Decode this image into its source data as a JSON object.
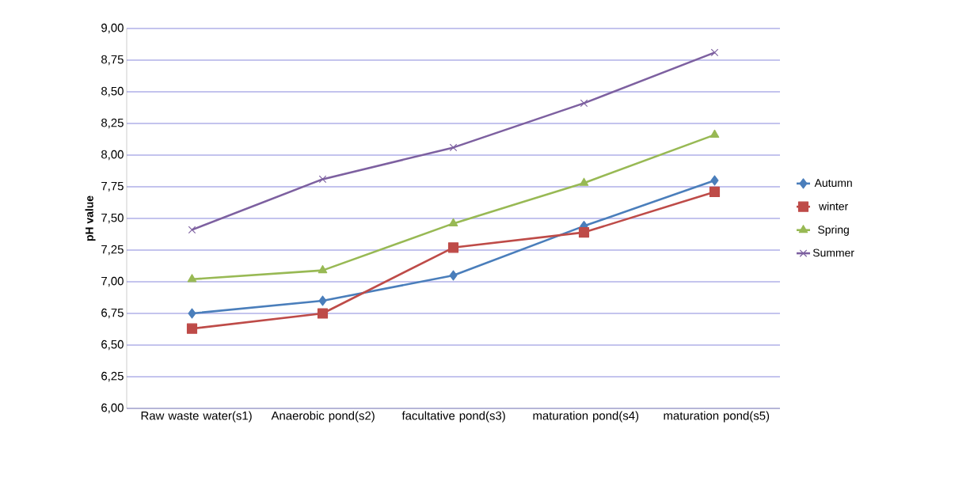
{
  "chart_data": {
    "type": "line",
    "ylabel": "pH value",
    "categories": [
      "Raw waste water(s1)",
      "Anaerobic pond(s2)",
      "facultative pond(s3)",
      "maturation pond(s4)",
      "maturation pond(s5)"
    ],
    "series": [
      {
        "name": "Autumn",
        "color": "#4a7ebb",
        "marker": "diamond",
        "values": [
          6.75,
          6.85,
          7.05,
          7.44,
          7.8
        ]
      },
      {
        "name": "winter",
        "color": "#be4b48",
        "marker": "square",
        "values": [
          6.63,
          6.75,
          7.27,
          7.39,
          7.71
        ]
      },
      {
        "name": "Spring",
        "color": "#98b954",
        "marker": "triangle",
        "values": [
          7.02,
          7.09,
          7.46,
          7.78,
          8.16
        ]
      },
      {
        "name": "Summer",
        "color": "#7d60a0",
        "marker": "cross",
        "values": [
          7.41,
          7.81,
          8.06,
          8.41,
          8.81
        ]
      }
    ],
    "ylim": [
      6,
      9
    ],
    "yticks": [
      {
        "value": 6,
        "label": "6,00"
      },
      {
        "value": 6.25,
        "label": "6,25"
      },
      {
        "value": 6.5,
        "label": "6,50"
      },
      {
        "value": 6.75,
        "label": "6,75"
      },
      {
        "value": 7,
        "label": "7,00"
      },
      {
        "value": 7.25,
        "label": "7,25"
      },
      {
        "value": 7.5,
        "label": "7,50"
      },
      {
        "value": 7.75,
        "label": "7,75"
      },
      {
        "value": 8,
        "label": "8,00"
      },
      {
        "value": 8.25,
        "label": "8,25"
      },
      {
        "value": 8.5,
        "label": "8,50"
      },
      {
        "value": 8.75,
        "label": "8,75"
      },
      {
        "value": 9,
        "label": "9,00"
      }
    ],
    "grid": "y",
    "legend": "right",
    "line_style": "solid"
  }
}
